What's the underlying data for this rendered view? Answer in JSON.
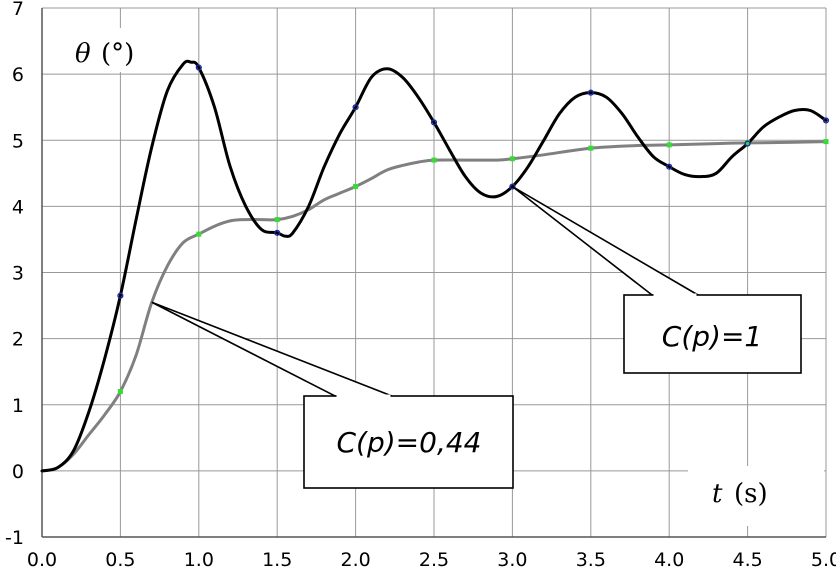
{
  "chart_data": {
    "type": "line",
    "xlabel_symbol": "t",
    "xlabel_unit": "(s)",
    "ylabel_symbol": "θ",
    "ylabel_unit": "(°)",
    "xlim": [
      0,
      5
    ],
    "ylim": [
      -1,
      7
    ],
    "xticks": [
      "0.0",
      "0.5",
      "1.0",
      "1.5",
      "2.0",
      "2.5",
      "3.0",
      "3.5",
      "4.0",
      "4.5",
      "5.0"
    ],
    "yticks": [
      "-1",
      "0",
      "1",
      "2",
      "3",
      "4",
      "5",
      "6",
      "7"
    ],
    "grid": true,
    "series": [
      {
        "name": "C(p)=1",
        "color": "#000000",
        "marker_color": "#1a2aa8",
        "x": [
          0,
          0.1,
          0.2,
          0.3,
          0.4,
          0.5,
          0.6,
          0.7,
          0.8,
          0.9,
          0.95,
          1.0,
          1.1,
          1.2,
          1.3,
          1.4,
          1.5,
          1.55,
          1.6,
          1.7,
          1.8,
          1.9,
          2.0,
          2.1,
          2.2,
          2.3,
          2.4,
          2.5,
          2.6,
          2.7,
          2.8,
          2.9,
          3.0,
          3.1,
          3.2,
          3.3,
          3.4,
          3.5,
          3.6,
          3.7,
          3.8,
          3.9,
          4.0,
          4.1,
          4.2,
          4.3,
          4.4,
          4.5,
          4.6,
          4.7,
          4.8,
          4.9,
          5.0
        ],
        "y": [
          0,
          0.05,
          0.3,
          0.9,
          1.7,
          2.65,
          3.8,
          4.9,
          5.75,
          6.15,
          6.18,
          6.1,
          5.5,
          4.6,
          4.0,
          3.65,
          3.6,
          3.55,
          3.6,
          4.0,
          4.6,
          5.1,
          5.5,
          5.95,
          6.08,
          5.95,
          5.65,
          5.27,
          4.85,
          4.45,
          4.2,
          4.15,
          4.3,
          4.6,
          5.0,
          5.4,
          5.65,
          5.72,
          5.65,
          5.4,
          5.05,
          4.75,
          4.6,
          4.48,
          4.45,
          4.5,
          4.75,
          4.95,
          5.2,
          5.35,
          5.45,
          5.45,
          5.3
        ],
        "markers_x": [
          0.5,
          1.0,
          1.5,
          2.0,
          2.5,
          3.0,
          3.5,
          4.0,
          4.5,
          5.0
        ],
        "markers_y": [
          2.65,
          6.1,
          3.6,
          5.5,
          5.27,
          4.3,
          5.72,
          4.6,
          4.95,
          5.3
        ]
      },
      {
        "name": "C(p)=0,44",
        "color": "#808080",
        "marker_color": "#33dd33",
        "x": [
          0,
          0.1,
          0.2,
          0.3,
          0.4,
          0.5,
          0.6,
          0.7,
          0.8,
          0.9,
          1.0,
          1.1,
          1.2,
          1.3,
          1.4,
          1.5,
          1.6,
          1.7,
          1.8,
          1.9,
          2.0,
          2.1,
          2.2,
          2.3,
          2.4,
          2.5,
          2.7,
          2.9,
          3.0,
          3.2,
          3.5,
          3.8,
          4.0,
          4.3,
          4.5,
          4.8,
          5.0
        ],
        "y": [
          0,
          0.05,
          0.25,
          0.55,
          0.85,
          1.2,
          1.75,
          2.55,
          3.1,
          3.45,
          3.58,
          3.7,
          3.78,
          3.8,
          3.8,
          3.8,
          3.85,
          3.95,
          4.1,
          4.2,
          4.3,
          4.42,
          4.55,
          4.62,
          4.67,
          4.7,
          4.7,
          4.7,
          4.72,
          4.78,
          4.88,
          4.92,
          4.93,
          4.95,
          4.96,
          4.97,
          4.98
        ],
        "markers_x": [
          0.5,
          1.0,
          1.5,
          2.0,
          2.5,
          3.0,
          3.5,
          4.0,
          4.5,
          5.0
        ],
        "markers_y": [
          1.2,
          3.58,
          3.8,
          4.3,
          4.7,
          4.72,
          4.88,
          4.93,
          4.96,
          4.98
        ]
      }
    ],
    "annotations": [
      {
        "text": "C(p)=1",
        "series": "C(p)=1",
        "point_x": 3.0,
        "point_y": 4.3
      },
      {
        "text": "C(p)=0,44",
        "series": "C(p)=0,44",
        "point_x": 0.7,
        "point_y": 2.55
      }
    ]
  }
}
